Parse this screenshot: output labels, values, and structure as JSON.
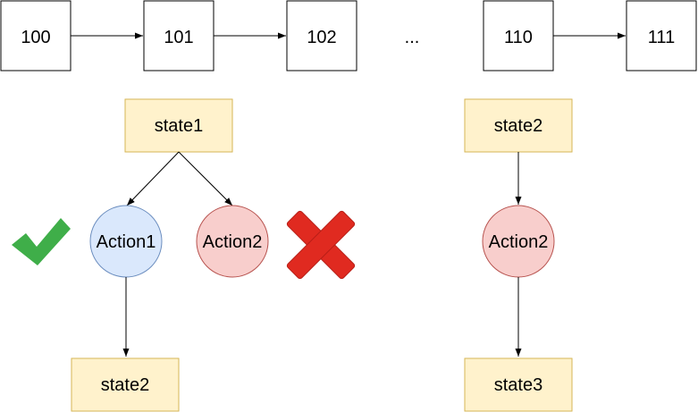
{
  "colors": {
    "stroke": "#000000",
    "state_fill": "#fff2cc",
    "state_stroke": "#d6b656",
    "action_chosen_fill": "#dae8fc",
    "action_chosen_stroke": "#6c8ebf",
    "action_rejected_fill": "#f8cecc",
    "action_rejected_stroke": "#b85450",
    "check": "#3fae49",
    "cross": "#e02a20"
  },
  "sequence": {
    "n100": "100",
    "n101": "101",
    "n102": "102",
    "ellipsis": "...",
    "n110": "110",
    "n111": "111"
  },
  "left_tree": {
    "root_state": "state1",
    "action_chosen": "Action1",
    "action_rejected": "Action2",
    "result_state": "state2",
    "check_icon": "check-mark-icon",
    "cross_icon": "cross-mark-icon"
  },
  "right_tree": {
    "root_state": "state2",
    "action": "Action2",
    "result_state": "state3"
  }
}
